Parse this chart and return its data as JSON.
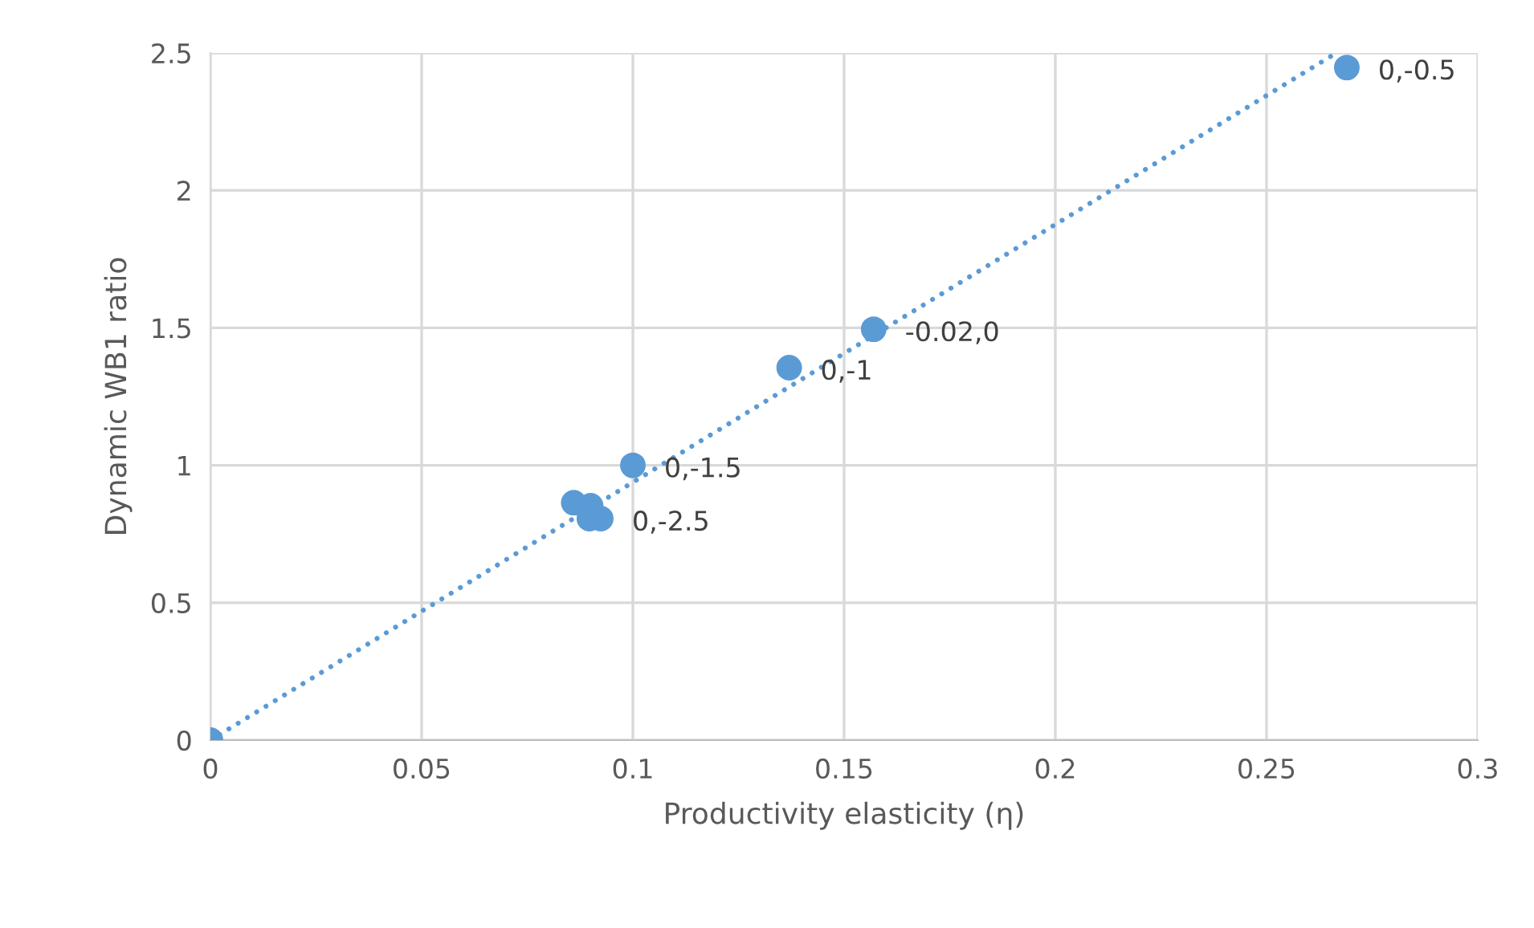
{
  "chart_data": {
    "type": "scatter",
    "xlabel": "Productivity elasticity (η)",
    "ylabel": "Dynamic WB1 ratio",
    "xlim": [
      0,
      0.3
    ],
    "xticks": [
      0,
      0.05,
      0.1,
      0.15,
      0.2,
      0.25,
      0.3
    ],
    "ylim": [
      0,
      2.5
    ],
    "yticks": [
      0,
      0.5,
      1,
      1.5,
      2,
      2.5
    ],
    "grid": true,
    "series": [
      {
        "marker": "circle",
        "color": "#5b9bd5",
        "x": [
          0,
          0.1,
          0.086,
          0.09,
          0.0897,
          0.0924,
          0.137,
          0.157,
          0.269
        ],
        "values": [
          0,
          1.0,
          0.864,
          0.853,
          0.806,
          0.806,
          1.355,
          1.495,
          2.447
        ]
      },
      {
        "type": "line",
        "marker": "none",
        "color": "#5b9bd5",
        "line_style": "dotted",
        "x": [
          0,
          0.2665
        ],
        "values": [
          0,
          2.5
        ]
      }
    ],
    "annotations": [
      {
        "text": "0,-0.5",
        "x": 0.269,
        "y": 2.447
      },
      {
        "text": "-0.02,0",
        "x": 0.157,
        "y": 1.495
      },
      {
        "text": "0,-1",
        "x": 0.137,
        "y": 1.355
      },
      {
        "text": "0,-1.5",
        "x": 0.1,
        "y": 1.0
      },
      {
        "text": "0,-2.5",
        "x": 0.0924,
        "y": 0.806
      }
    ]
  }
}
